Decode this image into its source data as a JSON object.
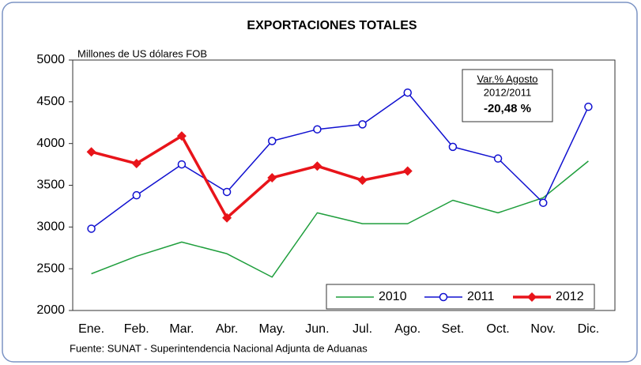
{
  "chart_data": {
    "type": "line",
    "title": "EXPORTACIONES TOTALES",
    "y_label": "Millones de US dólares FOB",
    "source": "Fuente: SUNAT - Superintendencia Nacional Adjunta de Aduanas",
    "annotation": {
      "title": "Var.% Agosto",
      "period": "2012/2011",
      "value": "-20,48 %"
    },
    "categories": [
      "Ene.",
      "Feb.",
      "Mar.",
      "Abr.",
      "May.",
      "Jun.",
      "Jul.",
      "Ago.",
      "Set.",
      "Oct.",
      "Nov.",
      "Dic."
    ],
    "series": [
      {
        "name": "2010",
        "color": "#1e9e3c",
        "marker": "none",
        "width": 1.5,
        "values": [
          2440,
          2650,
          2820,
          2680,
          2400,
          3170,
          3040,
          3040,
          3320,
          3170,
          3350,
          3790
        ]
      },
      {
        "name": "2011",
        "color": "#1010d0",
        "marker": "circle",
        "width": 1.5,
        "values": [
          2980,
          3380,
          3750,
          3420,
          4030,
          4170,
          4230,
          4610,
          3960,
          3820,
          3290,
          4440
        ]
      },
      {
        "name": "2012",
        "color": "#e8141a",
        "marker": "diamond",
        "width": 3.5,
        "values": [
          3900,
          3760,
          4090,
          3110,
          3590,
          3730,
          3560,
          3670,
          null,
          null,
          null,
          null
        ]
      }
    ],
    "ylim": [
      2000,
      5000
    ],
    "yticks": [
      2000,
      2500,
      3000,
      3500,
      4000,
      4500,
      5000
    ],
    "grid": false,
    "legend": "lower right"
  }
}
